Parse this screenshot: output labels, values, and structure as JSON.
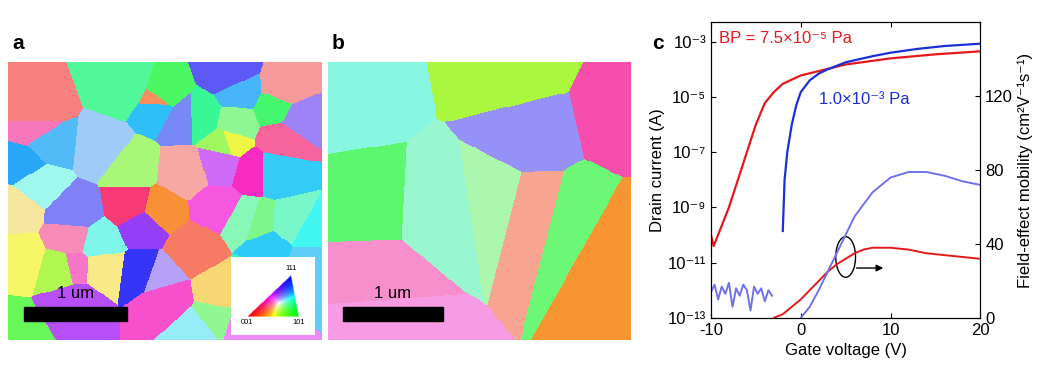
{
  "images": [
    {
      "label": "a",
      "scale_bar": "1 um",
      "color_key": {
        "top": "111",
        "left": "001",
        "right": "101"
      }
    },
    {
      "label": "b",
      "scale_bar": "1 um"
    }
  ],
  "chart_label": "c",
  "chart_data": {
    "type": "line",
    "log": "y",
    "xlabel": "Gate voltage (V)",
    "ylabel": "Drain current (A)",
    "y2label": "Field-effect mobility (cm²V⁻¹s⁻¹)",
    "xlim": [
      -10,
      20
    ],
    "xticks": [
      -10,
      0,
      10,
      20
    ],
    "ylim": [
      1e-13,
      0.005
    ],
    "yticks": [
      {
        "value": 1e-13,
        "label": "10⁻¹³"
      },
      {
        "value": 1e-11,
        "label": "10⁻¹¹"
      },
      {
        "value": 1e-09,
        "label": "10⁻⁹"
      },
      {
        "value": 1e-07,
        "label": "10⁻⁷"
      },
      {
        "value": 1e-05,
        "label": "10⁻⁵"
      },
      {
        "value": 0.001,
        "label": "10⁻³"
      }
    ],
    "y2lim": [
      0,
      160
    ],
    "y2ticks": [
      0,
      40,
      80,
      120
    ],
    "series": [
      {
        "name": "BP = 7.5×10⁻⁵ Pa",
        "color": "#e3191c",
        "axis": "y",
        "x": [
          -10,
          -9.7,
          -9,
          -8,
          -7,
          -6,
          -5,
          -4,
          -3,
          -2,
          0,
          5,
          10,
          15,
          20
        ],
        "values": [
          1e-10,
          4e-11,
          1.5e-10,
          1e-09,
          1e-08,
          1e-07,
          1e-06,
          6e-06,
          1.5e-05,
          3e-05,
          6e-05,
          0.00015,
          0.00025,
          0.00035,
          0.00045
        ]
      },
      {
        "name": "1.0×10⁻³ Pa",
        "color": "#1a2fd6",
        "axis": "y",
        "x": [
          -2,
          -1.8,
          -1.5,
          -1,
          -0.5,
          0,
          1,
          2,
          3,
          5,
          8,
          10,
          13,
          16,
          20
        ],
        "values": [
          1.4e-10,
          1e-08,
          1e-07,
          1e-06,
          5e-06,
          1.5e-05,
          4e-05,
          7e-05,
          0.0001,
          0.00018,
          0.0003,
          0.0004,
          0.00055,
          0.0007,
          0.00085
        ]
      },
      {
        "color": "#e3191c",
        "axis": "y2",
        "x": [
          -3,
          -2,
          -1,
          0,
          1,
          2,
          3,
          4,
          5,
          6,
          7,
          8,
          10,
          12,
          14,
          16,
          18,
          20
        ],
        "values": [
          0,
          2,
          6,
          10,
          15,
          20,
          25,
          29,
          32,
          35,
          37,
          38,
          38,
          37,
          35,
          34,
          33,
          32
        ]
      },
      {
        "color": "#6f72e8",
        "axis": "y2",
        "x": [
          -10,
          -9.6,
          -9.2,
          -8.8,
          -8.4,
          -8,
          -7.6,
          -7.2,
          -6.8,
          -6.4,
          -6,
          -5.6,
          -5.2,
          -4.8,
          -4.4,
          -4,
          -3.6,
          -3.2,
          -2,
          0,
          1,
          2,
          3,
          4,
          6,
          8,
          10,
          12,
          14,
          16,
          18,
          20
        ],
        "values": [
          14,
          18,
          10,
          17,
          13,
          19,
          6,
          16,
          12,
          18,
          15,
          4,
          17,
          13,
          16,
          9,
          15,
          12,
          null,
          0,
          6,
          15,
          25,
          35,
          55,
          68,
          76,
          79,
          79,
          77,
          74,
          72
        ]
      }
    ]
  }
}
